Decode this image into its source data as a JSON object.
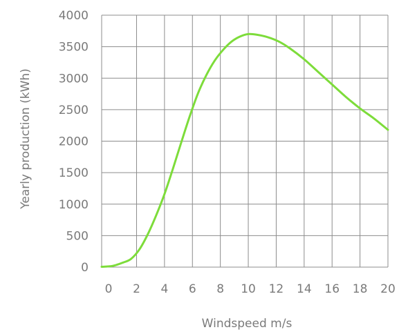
{
  "chart_data": {
    "type": "line",
    "title": "",
    "xlabel": "Windspeed m/s",
    "ylabel": "Yearly production (kWh)",
    "xlim": [
      -0.5,
      20
    ],
    "ylim": [
      0,
      4000
    ],
    "x_ticks": [
      0,
      2,
      4,
      6,
      8,
      10,
      12,
      14,
      16,
      18,
      20
    ],
    "y_ticks": [
      0,
      500,
      1000,
      1500,
      2000,
      2500,
      3000,
      3500,
      4000
    ],
    "x_tick_labels": [
      "0",
      "2",
      "4",
      "6",
      "8",
      "10",
      "12",
      "14",
      "16",
      "18",
      "20"
    ],
    "y_tick_labels": [
      "0",
      "500",
      "1000",
      "1500",
      "2000",
      "2500",
      "3000",
      "3500",
      "4000"
    ],
    "grid": true,
    "legend": "none",
    "series": [
      {
        "color": "#7ddc3a",
        "x": [
          -0.5,
          0.3,
          1,
          1.6,
          2.2,
          2.8,
          3.4,
          4,
          4.6,
          5.2,
          5.8,
          6.4,
          7,
          7.6,
          8.2,
          8.8,
          9.4,
          10,
          10.6,
          11.4,
          12.2,
          13,
          14,
          15,
          16,
          17,
          18,
          19,
          20
        ],
        "y": [
          5,
          20,
          70,
          130,
          280,
          520,
          820,
          1160,
          1560,
          1980,
          2390,
          2760,
          3050,
          3280,
          3450,
          3580,
          3660,
          3700,
          3690,
          3650,
          3580,
          3470,
          3300,
          3100,
          2900,
          2700,
          2520,
          2360,
          2180
        ]
      }
    ]
  }
}
